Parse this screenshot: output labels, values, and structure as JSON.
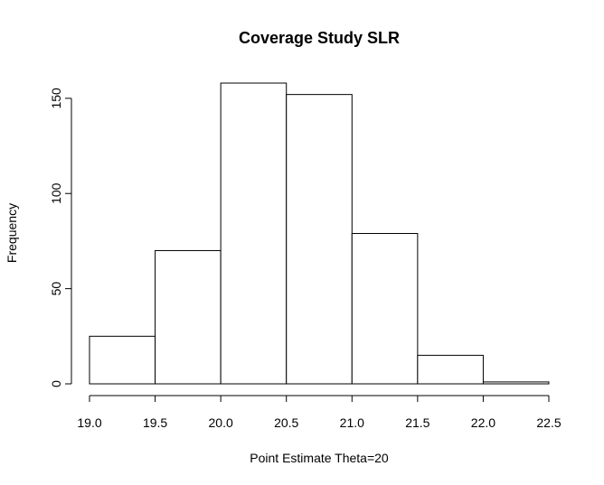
{
  "chart_data": {
    "type": "bar",
    "title": "Coverage Study SLR",
    "xlabel": "Point Estimate Theta=20",
    "ylabel": "Frequency",
    "bins": [
      {
        "start": 19.0,
        "end": 19.5,
        "count": 25
      },
      {
        "start": 19.5,
        "end": 20.0,
        "count": 70
      },
      {
        "start": 20.0,
        "end": 20.5,
        "count": 158
      },
      {
        "start": 20.5,
        "end": 21.0,
        "count": 152
      },
      {
        "start": 21.0,
        "end": 21.5,
        "count": 79
      },
      {
        "start": 21.5,
        "end": 22.0,
        "count": 15
      },
      {
        "start": 22.0,
        "end": 22.5,
        "count": 1
      }
    ],
    "x_ticks": [
      "19.0",
      "19.5",
      "20.0",
      "20.5",
      "21.0",
      "21.5",
      "22.0",
      "22.5"
    ],
    "y_ticks": [
      "0",
      "50",
      "100",
      "150"
    ],
    "xlim": [
      19.0,
      22.5
    ],
    "ylim": [
      0,
      158
    ],
    "grid": false
  }
}
